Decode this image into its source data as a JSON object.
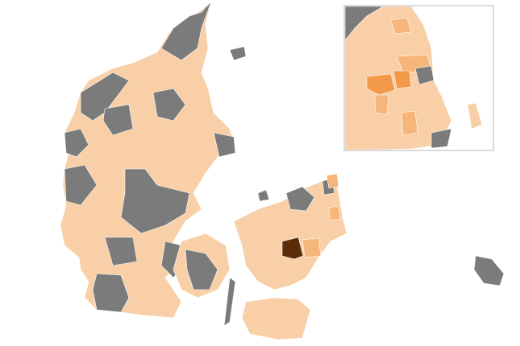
{
  "map": {
    "colors": {
      "base": "#f8cfa6",
      "no_data": "#7b7b7b",
      "light_orange": "#f6b57a",
      "mid_orange": "#f29a4a",
      "dark": "#5a2c08",
      "inset_border": "#b5b5b5",
      "background": "#ffffff"
    },
    "inset": {
      "shows": "Copenhagen area"
    }
  }
}
